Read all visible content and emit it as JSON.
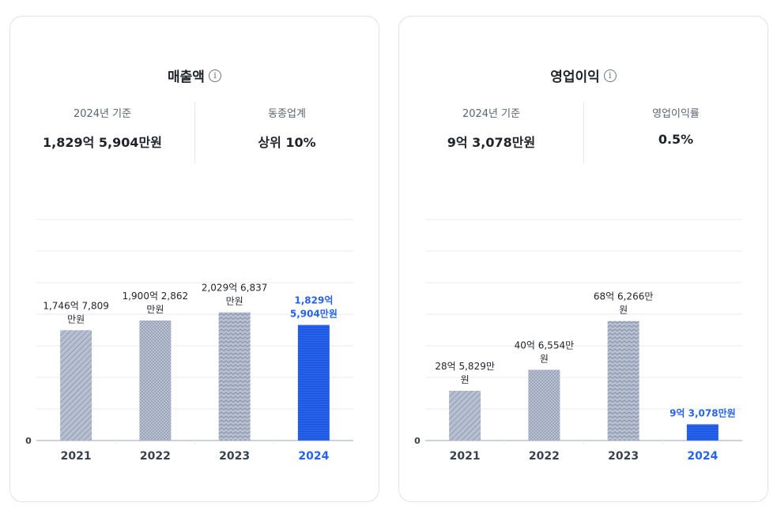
{
  "chart_data": [
    {
      "type": "bar",
      "title": "매출액",
      "categories": [
        "2021",
        "2022",
        "2023",
        "2024"
      ],
      "values": [
        174678090000,
        190028620000,
        202968370000,
        182959040000
      ],
      "value_labels": [
        [
          "1,746억 7,809",
          "만원"
        ],
        [
          "1,900억 2,862",
          "만원"
        ],
        [
          "2,029억 6,837",
          "만원"
        ],
        [
          "1,829억",
          "5,904만원"
        ]
      ],
      "highlight_index": 3,
      "ylim": [
        0,
        350000000000
      ],
      "zero_label": "0",
      "gridlines": true,
      "stats": [
        {
          "label": "2024년 기준",
          "value": "1,829억 5,904만원"
        },
        {
          "label": "동종업계",
          "value": "상위 10%"
        }
      ]
    },
    {
      "type": "bar",
      "title": "영업이익",
      "categories": [
        "2021",
        "2022",
        "2023",
        "2024"
      ],
      "values": [
        2858290000,
        4065540000,
        6862660000,
        930780000
      ],
      "value_labels": [
        [
          "28억 5,829만",
          "원"
        ],
        [
          "40억 6,554만",
          "원"
        ],
        [
          "68억 6,266만",
          "원"
        ],
        [
          "9억 3,078만원"
        ]
      ],
      "highlight_index": 3,
      "ylim": [
        0,
        12700000000
      ],
      "zero_label": "0",
      "gridlines": true,
      "stats": [
        {
          "label": "2024년 기준",
          "value": "9억 3,078만원"
        },
        {
          "label": "영업이익률",
          "value": "0.5%"
        }
      ]
    }
  ],
  "info_icon": "info-icon",
  "colors": {
    "highlight": "#2563eb",
    "bar_base": "#b7c0d0",
    "bar_pattern": "#8793aa",
    "grid": "#e8eaee",
    "axis": "#9aa3b5"
  }
}
